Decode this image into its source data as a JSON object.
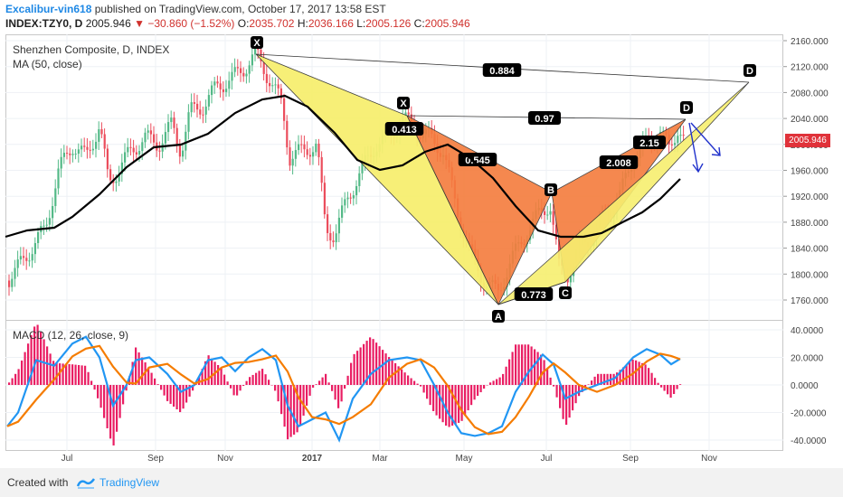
{
  "header": {
    "username": "Excalibur-vin618",
    "published_text": " published on TradingView.com, October 17, 2017 13:58 EST",
    "symbol": "INDEX:TZY0, D",
    "last": "2005.946",
    "arrow": "▼",
    "change": "−30.860 (−1.52%)",
    "open_label": "O:",
    "open": "2035.702",
    "high_label": "H:",
    "high": "2036.166",
    "low_label": "L:",
    "low": "2005.126",
    "close_label": "C:",
    "close": "2005.946"
  },
  "main_pane": {
    "title": "Shenzhen Composite, D, INDEX",
    "indicator": "MA (50, close)",
    "price_axis": [
      "2160.000",
      "2120.000",
      "2080.000",
      "2040.000",
      "2000.000",
      "1960.000",
      "1920.000",
      "1880.000",
      "1840.000",
      "1800.000",
      "1760.000"
    ],
    "current_price": "2005.946",
    "colors": {
      "up": "#53b987",
      "down": "#eb4d5c",
      "ma": "#000000",
      "pattern_fill_1": "#f7ef70",
      "pattern_fill_2": "#f57c3c"
    }
  },
  "pattern": {
    "points": [
      "X",
      "X",
      "A",
      "B",
      "C",
      "D",
      "D"
    ],
    "ratios": [
      "0.884",
      "0.97",
      "0.413",
      "0.545",
      "0.773",
      "2.008",
      "2.15"
    ]
  },
  "macd_pane": {
    "title": "MACD (12, 26, close, 9)",
    "axis": [
      "40.0000",
      "20.0000",
      "0.0000",
      "-20.0000",
      "-40.0000"
    ],
    "colors": {
      "macd": "#2196f3",
      "signal": "#f57c00",
      "histogram": "#e91e63"
    }
  },
  "time_axis": [
    "Jul",
    "Sep",
    "Nov",
    "2017",
    "Mar",
    "May",
    "Jul",
    "Sep",
    "Nov"
  ],
  "footer": {
    "created_with": "Created with",
    "brand": "TradingView"
  }
}
